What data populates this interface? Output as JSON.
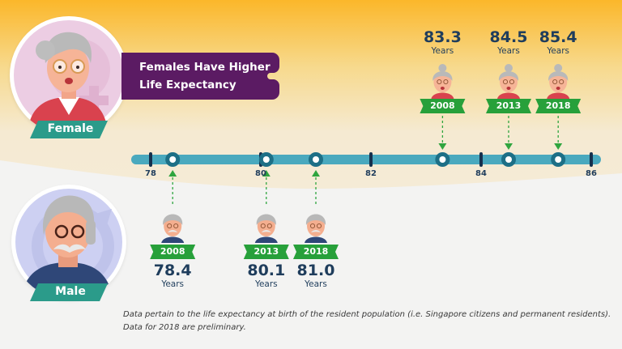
{
  "title": {
    "line1": "Females Have Higher",
    "line2": "Life Expectancy"
  },
  "labels": {
    "female": "Female",
    "male": "Male"
  },
  "colors": {
    "banner": "#5b1b63",
    "tag": "#2b9b8a",
    "ribbon": "#27a03a",
    "axis": "#4aa9be",
    "tick": "#16304d",
    "value_text": "#1f3d5c",
    "arrow": "#2fa53f"
  },
  "chart_data": {
    "type": "timeline",
    "axis": {
      "min": 78,
      "max": 86,
      "ticks": [
        78,
        80,
        82,
        84,
        86
      ]
    },
    "unit_label": "Years",
    "series": [
      {
        "name": "Female",
        "points": [
          {
            "year": "2008",
            "value": 83.3,
            "display": "83.3"
          },
          {
            "year": "2013",
            "value": 84.5,
            "display": "84.5"
          },
          {
            "year": "2018",
            "value": 85.4,
            "display": "85.4"
          }
        ]
      },
      {
        "name": "Male",
        "points": [
          {
            "year": "2008",
            "value": 78.4,
            "display": "78.4"
          },
          {
            "year": "2013",
            "value": 80.1,
            "display": "80.1"
          },
          {
            "year": "2018",
            "value": 81.0,
            "display": "81.0"
          }
        ]
      }
    ]
  },
  "footnote": {
    "line1": "Data pertain to the life expectancy at birth of the resident population (i.e. Singapore citizens and permanent residents).",
    "line2": "Data for 2018 are preliminary."
  }
}
